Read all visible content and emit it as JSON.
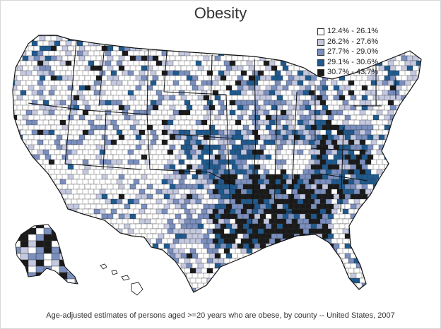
{
  "title": "Obesity",
  "caption": "Age-adjusted estimates  of persons aged >=20 years who are obese, by county -- United States, 2007",
  "legend": [
    {
      "label": "12.4% - 26.1%",
      "color": "#ffffff"
    },
    {
      "label": "26.2% - 27.6%",
      "color": "#c5c9e0"
    },
    {
      "label": "27.7% - 29.0%",
      "color": "#7a8fbe"
    },
    {
      "label": "29.1% - 30.6%",
      "color": "#1f5a8e"
    },
    {
      "label": "30.7% - 43.7%",
      "color": "#1a1a1a"
    }
  ],
  "colors": {
    "county_border": "#333333",
    "state_border": "#111111",
    "background": "#ffffff"
  }
}
